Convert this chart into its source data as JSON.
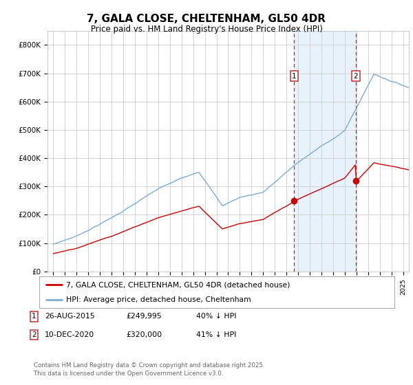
{
  "title": "7, GALA CLOSE, CHELTENHAM, GL50 4DR",
  "subtitle": "Price paid vs. HM Land Registry's House Price Index (HPI)",
  "ylabel_ticks": [
    "£0",
    "£100K",
    "£200K",
    "£300K",
    "£400K",
    "£500K",
    "£600K",
    "£700K",
    "£800K"
  ],
  "ytick_values": [
    0,
    100000,
    200000,
    300000,
    400000,
    500000,
    600000,
    700000,
    800000
  ],
  "ylim": [
    0,
    850000
  ],
  "xlim_start": 1994.5,
  "xlim_end": 2025.5,
  "vline1_x": 2015.65,
  "vline2_x": 2020.95,
  "legend_line1": "7, GALA CLOSE, CHELTENHAM, GL50 4DR (detached house)",
  "legend_line2": "HPI: Average price, detached house, Cheltenham",
  "footer": "Contains HM Land Registry data © Crown copyright and database right 2025.\nThis data is licensed under the Open Government Licence v3.0.",
  "line_red_color": "#cc0000",
  "line_blue_color": "#7aacd6",
  "shaded_color": "#ddeeff",
  "grid_color": "#cccccc",
  "background_color": "#ffffff",
  "sale1_x": 2015.65,
  "sale1_y": 249995,
  "sale2_x": 2020.95,
  "sale2_y": 320000
}
